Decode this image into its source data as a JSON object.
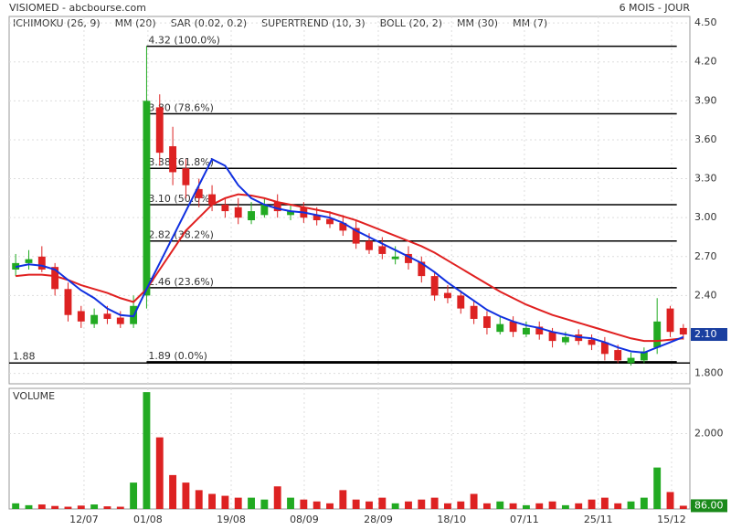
{
  "chart_data": {
    "type": "candlestick",
    "title": "VISIOMED - abcbourse.com",
    "period": "6 MOIS - JOUR",
    "legend": [
      {
        "name": "ICHIMOKU (26, 9)",
        "color": "#2222cc"
      },
      {
        "name": "MM (20)",
        "color": "#e02020"
      },
      {
        "name": "SAR (0.02, 0.2)",
        "color": "#c00000"
      },
      {
        "name": "SUPERTREND (10, 3)",
        "color": "#1a8a1a"
      },
      {
        "name": "BOLL (20, 2)",
        "color": "#f0a040"
      },
      {
        "name": "MM (30)",
        "color": "#20c020"
      },
      {
        "name": "MM (7)",
        "color": "#1030e0"
      }
    ],
    "xlim": [
      -0.5,
      51.5
    ],
    "xticks": [
      {
        "value": 5.22,
        "label": "12/07"
      },
      {
        "value": 10.1,
        "label": "01/08"
      },
      {
        "value": 16.46,
        "label": "19/08"
      },
      {
        "value": 22.04,
        "label": "08/09"
      },
      {
        "value": 27.7,
        "label": "28/09"
      },
      {
        "value": 33.3,
        "label": "18/10"
      },
      {
        "value": 38.86,
        "label": "07/11"
      },
      {
        "value": 44.5,
        "label": "25/11"
      },
      {
        "value": 50.1,
        "label": "15/12"
      }
    ],
    "ylim": [
      1.72,
      4.55
    ],
    "yticks": [
      {
        "value": 4.5,
        "label": "4.50"
      },
      {
        "value": 4.2,
        "label": "4.20"
      },
      {
        "value": 3.9,
        "label": "3.90"
      },
      {
        "value": 3.6,
        "label": "3.60"
      },
      {
        "value": 3.3,
        "label": "3.30"
      },
      {
        "value": 3.0,
        "label": "3.00"
      },
      {
        "value": 2.7,
        "label": "2.70"
      },
      {
        "value": 2.4,
        "label": "2.40"
      },
      {
        "value": 1.8,
        "label": "1.800"
      }
    ],
    "up_color": "#22aa22",
    "down_color": "#dd2222",
    "open": [
      2.6,
      2.65,
      2.7,
      2.62,
      2.45,
      2.28,
      2.18,
      2.26,
      2.23,
      2.18,
      2.4,
      3.85,
      3.55,
      3.38,
      3.22,
      3.18,
      3.1,
      3.08,
      2.98,
      3.02,
      3.12,
      3.02,
      3.08,
      3.02,
      2.99,
      2.96,
      2.92,
      2.82,
      2.78,
      2.68,
      2.72,
      2.66,
      2.55,
      2.42,
      2.4,
      2.32,
      2.24,
      2.12,
      2.2,
      2.1,
      2.16,
      2.12,
      2.04,
      2.1,
      2.06,
      2.04,
      1.98,
      1.88,
      1.9,
      2.0,
      2.3,
      2.15
    ],
    "high": [
      2.72,
      2.75,
      2.78,
      2.65,
      2.5,
      2.32,
      2.3,
      2.32,
      2.28,
      2.4,
      4.32,
      3.95,
      3.7,
      3.45,
      3.3,
      3.25,
      3.15,
      3.15,
      3.12,
      3.15,
      3.18,
      3.1,
      3.12,
      3.08,
      3.05,
      3.02,
      2.98,
      2.88,
      2.85,
      2.78,
      2.78,
      2.7,
      2.58,
      2.48,
      2.44,
      2.36,
      2.28,
      2.24,
      2.24,
      2.2,
      2.2,
      2.15,
      2.12,
      2.14,
      2.1,
      2.08,
      2.02,
      1.96,
      2.0,
      2.38,
      2.32,
      2.18
    ],
    "low": [
      2.55,
      2.6,
      2.58,
      2.4,
      2.2,
      2.15,
      2.15,
      2.18,
      2.15,
      2.15,
      2.3,
      3.4,
      3.25,
      3.15,
      3.08,
      3.05,
      3.0,
      2.95,
      2.95,
      3.0,
      3.0,
      2.98,
      2.96,
      2.94,
      2.92,
      2.86,
      2.76,
      2.72,
      2.68,
      2.64,
      2.6,
      2.5,
      2.36,
      2.34,
      2.26,
      2.18,
      2.1,
      2.1,
      2.08,
      2.08,
      2.06,
      2.0,
      2.02,
      2.02,
      1.98,
      1.9,
      1.88,
      1.86,
      1.88,
      1.95,
      2.08,
      2.06
    ],
    "close": [
      2.65,
      2.68,
      2.6,
      2.45,
      2.25,
      2.2,
      2.25,
      2.22,
      2.18,
      2.32,
      3.9,
      3.5,
      3.35,
      3.25,
      3.15,
      3.1,
      3.05,
      3.0,
      3.05,
      3.1,
      3.05,
      3.05,
      3.0,
      2.98,
      2.95,
      2.9,
      2.8,
      2.75,
      2.72,
      2.7,
      2.65,
      2.55,
      2.4,
      2.38,
      2.3,
      2.22,
      2.15,
      2.18,
      2.12,
      2.15,
      2.1,
      2.05,
      2.08,
      2.05,
      2.02,
      1.95,
      1.9,
      1.92,
      1.97,
      2.2,
      2.12,
      2.1
    ],
    "last_label": "2.10",
    "series": [
      {
        "name": "MM (20)",
        "color": "#e02020",
        "values": [
          2.55,
          2.56,
          2.56,
          2.55,
          2.52,
          2.48,
          2.45,
          2.42,
          2.38,
          2.35,
          2.45,
          2.6,
          2.75,
          2.9,
          3.0,
          3.1,
          3.15,
          3.18,
          3.17,
          3.15,
          3.12,
          3.1,
          3.08,
          3.06,
          3.04,
          3.01,
          2.98,
          2.94,
          2.9,
          2.86,
          2.82,
          2.78,
          2.73,
          2.67,
          2.61,
          2.55,
          2.49,
          2.43,
          2.38,
          2.33,
          2.29,
          2.25,
          2.22,
          2.19,
          2.16,
          2.13,
          2.1,
          2.07,
          2.05,
          2.05,
          2.06,
          2.07
        ]
      },
      {
        "name": "MM (7)",
        "color": "#1030e0",
        "values": [
          2.62,
          2.64,
          2.63,
          2.6,
          2.52,
          2.44,
          2.38,
          2.3,
          2.25,
          2.24,
          2.45,
          2.65,
          2.85,
          3.05,
          3.25,
          3.45,
          3.4,
          3.25,
          3.15,
          3.1,
          3.07,
          3.05,
          3.04,
          3.02,
          3.0,
          2.96,
          2.9,
          2.85,
          2.8,
          2.75,
          2.7,
          2.65,
          2.58,
          2.5,
          2.43,
          2.36,
          2.29,
          2.24,
          2.2,
          2.17,
          2.15,
          2.12,
          2.1,
          2.08,
          2.07,
          2.04,
          2.0,
          1.97,
          1.96,
          2.0,
          2.04,
          2.08
        ]
      }
    ],
    "fib_start": 10,
    "fib_end": 50.5,
    "fib_levels": [
      {
        "value": 4.32,
        "label": "4.32  (100.0%)"
      },
      {
        "value": 3.8,
        "label": "3.80  (78.6%)"
      },
      {
        "value": 3.38,
        "label": "3.38  (61.8%)"
      },
      {
        "value": 3.1,
        "label": "3.10  (50.0%)"
      },
      {
        "value": 2.82,
        "label": "2.82  (38.2%)"
      },
      {
        "value": 2.46,
        "label": "2.46  (23.6%)"
      },
      {
        "value": 1.89,
        "label": "1.89  (0.0%)"
      }
    ],
    "support": {
      "value": 1.88,
      "label": "1.88"
    },
    "volume": {
      "title": "VOLUME",
      "ylim": [
        0,
        3200
      ],
      "yticks": [
        {
          "value": 2000,
          "label": "2.000"
        }
      ],
      "values": [
        150,
        100,
        120,
        80,
        60,
        90,
        120,
        70,
        60,
        700,
        3100,
        1900,
        900,
        700,
        500,
        400,
        350,
        300,
        300,
        250,
        600,
        300,
        250,
        200,
        150,
        500,
        250,
        200,
        300,
        150,
        200,
        250,
        300,
        150,
        200,
        400,
        150,
        200,
        150,
        100,
        150,
        200,
        100,
        150,
        250,
        300,
        150,
        200,
        300,
        1100,
        450,
        86
      ],
      "last_label": "86.00"
    }
  }
}
